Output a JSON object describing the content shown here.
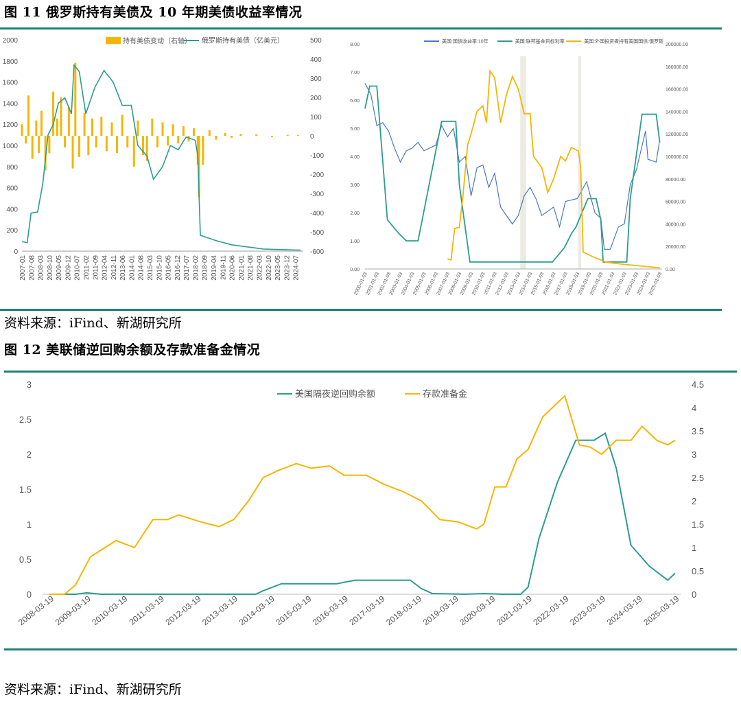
{
  "figure11": {
    "title": "图  11  俄罗斯持有美债及 10 年期美债收益率情况",
    "source": "资料来源：iFind、新湖研究所"
  },
  "figure12": {
    "title": "图  12  美联储逆回购余额及存款准备金情况",
    "source": "资料来源：iFind、新湖研究所"
  },
  "colors": {
    "teal": "#2a9d8f",
    "gold": "#f7b500",
    "rule": "#1e7f78",
    "shade": "#ecebe3",
    "blue": "#4a78c0"
  },
  "chart_data": [
    {
      "type": "bar",
      "x_ticks": [
        "2007-01",
        "2007-08",
        "2008-03",
        "2008-10",
        "2009-05",
        "2009-12",
        "2010-07",
        "2011-02",
        "2011-09",
        "2012-04",
        "2012-11",
        "2013-06",
        "2014-01",
        "2014-08",
        "2015-03",
        "2015-10",
        "2016-05",
        "2016-12",
        "2017-07",
        "2018-02",
        "2018-09",
        "2019-04",
        "2019-11",
        "2020-06",
        "2021-01",
        "2021-08",
        "2022-03",
        "2022-10",
        "2023-05",
        "2023-12",
        "2024-07"
      ],
      "y_left_ticks": [
        "0",
        "200",
        "400",
        "600",
        "800",
        "1000",
        "1200",
        "1400",
        "1600",
        "1800",
        "2000"
      ],
      "y_right_ticks": [
        "500",
        "400",
        "300",
        "200",
        "100",
        "0",
        "-100",
        "-200",
        "-300",
        "-400",
        "-500",
        "-600"
      ],
      "ylim_left": [
        0,
        2000
      ],
      "ylim_right": [
        -600,
        500
      ],
      "series": [
        {
          "name": "持有美债变动（右轴）",
          "kind": "bar",
          "axis": "right",
          "x": [
            "2007-01",
            "2007-04",
            "2007-06",
            "2007-09",
            "2007-12",
            "2008-02",
            "2008-04",
            "2008-07",
            "2008-10",
            "2009-01",
            "2009-04",
            "2009-07",
            "2009-10",
            "2010-01",
            "2010-04",
            "2010-06",
            "2010-09",
            "2011-01",
            "2011-04",
            "2011-07",
            "2011-10",
            "2012-02",
            "2012-06",
            "2012-10",
            "2013-02",
            "2013-06",
            "2013-10",
            "2014-03",
            "2014-06",
            "2014-10",
            "2015-01",
            "2015-05",
            "2015-09",
            "2016-01",
            "2016-05",
            "2016-09",
            "2017-01",
            "2017-05",
            "2017-09",
            "2018-01",
            "2018-04",
            "2018-05",
            "2018-08",
            "2019-01",
            "2019-06",
            "2020-01",
            "2020-06",
            "2021-01",
            "2022-01",
            "2023-01",
            "2024-01",
            "2024-09"
          ],
          "values": [
            60,
            -40,
            210,
            -120,
            80,
            -90,
            130,
            -180,
            -90,
            230,
            90,
            200,
            -60,
            150,
            -170,
            380,
            -110,
            120,
            -100,
            90,
            -60,
            100,
            -80,
            70,
            -90,
            110,
            -60,
            -160,
            80,
            -100,
            -130,
            90,
            -60,
            70,
            -50,
            60,
            -40,
            50,
            -30,
            40,
            -150,
            -320,
            -150,
            30,
            -20,
            15,
            -10,
            10,
            8,
            -6,
            5,
            3
          ]
        },
        {
          "name": "俄罗斯持有美债（亿美元）",
          "kind": "line",
          "axis": "left",
          "x": [
            "2007-01",
            "2007-05",
            "2007-08",
            "2008-01",
            "2008-05",
            "2008-09",
            "2009-01",
            "2009-05",
            "2009-10",
            "2010-03",
            "2010-05",
            "2010-09",
            "2011-02",
            "2011-09",
            "2012-04",
            "2012-11",
            "2013-06",
            "2014-01",
            "2014-06",
            "2015-01",
            "2015-06",
            "2016-01",
            "2016-07",
            "2017-01",
            "2017-07",
            "2018-02",
            "2018-04",
            "2018-06",
            "2019-06",
            "2020-06",
            "2021-06",
            "2022-06",
            "2023-06",
            "2024-11"
          ],
          "values": [
            90,
            80,
            360,
            370,
            640,
            1100,
            1200,
            1400,
            1450,
            1300,
            1760,
            1700,
            1300,
            1550,
            1710,
            1600,
            1380,
            1380,
            1000,
            900,
            680,
            800,
            1000,
            960,
            1080,
            1050,
            900,
            150,
            100,
            60,
            40,
            20,
            15,
            10
          ]
        }
      ],
      "legend": "top-center"
    },
    {
      "type": "line",
      "x_ticks": [
        "2000-01-03",
        "2001-01-03",
        "2002-01-03",
        "2003-01-03",
        "2004-01-03",
        "2005-01-03",
        "2006-01-03",
        "2007-01-03",
        "2008-01-03",
        "2009-01-03",
        "2010-01-03",
        "2011-01-03",
        "2012-01-03",
        "2013-01-03",
        "2014-01-03",
        "2015-01-03",
        "2016-01-03",
        "2017-01-03",
        "2018-01-03",
        "2019-01-03",
        "2020-01-03",
        "2021-01-03",
        "2022-01-03",
        "2023-01-03",
        "2024-01-03",
        "2025-01-03"
      ],
      "y_left_ticks": [
        "0.00",
        "1.00",
        "2.00",
        "3.00",
        "4.00",
        "5.00",
        "6.00",
        "7.00",
        "8.00"
      ],
      "y_right_ticks": [
        "0.00",
        "20000.00",
        "40000.00",
        "60000.00",
        "80000.00",
        "100000.00",
        "120000.00",
        "140000.00",
        "160000.00",
        "180000.00",
        "200000.00"
      ],
      "ylim_left": [
        0,
        8
      ],
      "ylim_right": [
        0,
        200000
      ],
      "shaded_ranges": [
        [
          "2013-03",
          "2013-09"
        ],
        [
          "2018-02",
          "2018-05"
        ]
      ],
      "series": [
        {
          "name": "美国:国债收益率:10年",
          "axis": "left",
          "x": [
            2000.0,
            2000.5,
            2001.0,
            2001.5,
            2002.0,
            2002.5,
            2003.0,
            2003.5,
            2004.0,
            2004.5,
            2005.0,
            2006.0,
            2006.5,
            2007.0,
            2007.5,
            2008.0,
            2008.5,
            2009.0,
            2009.5,
            2010.0,
            2010.5,
            2011.0,
            2011.5,
            2012.0,
            2012.5,
            2013.0,
            2013.5,
            2014.0,
            2014.5,
            2015.0,
            2016.0,
            2016.5,
            2017.0,
            2018.0,
            2018.8,
            2019.5,
            2020.0,
            2020.3,
            2020.8,
            2021.5,
            2022.0,
            2022.5,
            2023.0,
            2023.8,
            2024.0,
            2024.7,
            2025.0
          ],
          "values": [
            6.6,
            6.2,
            5.1,
            5.2,
            4.9,
            4.3,
            3.8,
            4.2,
            4.3,
            4.5,
            4.2,
            4.4,
            5.1,
            4.7,
            5.0,
            3.8,
            4.0,
            2.6,
            3.6,
            3.7,
            2.9,
            3.4,
            2.2,
            1.9,
            1.6,
            1.9,
            2.6,
            2.9,
            2.5,
            1.9,
            2.2,
            1.5,
            2.4,
            2.5,
            3.1,
            2.0,
            1.8,
            0.7,
            0.7,
            1.5,
            1.6,
            3.0,
            3.5,
            4.9,
            3.9,
            3.8,
            4.6
          ]
        },
        {
          "name": "美国:联邦基金目标利率",
          "axis": "left",
          "x": [
            2000.0,
            2000.4,
            2001.0,
            2001.9,
            2002.9,
            2003.5,
            2004.5,
            2006.5,
            2007.7,
            2008.0,
            2008.9,
            2015.9,
            2016.9,
            2017.5,
            2017.9,
            2018.9,
            2019.6,
            2020.0,
            2020.2,
            2022.2,
            2022.5,
            2023.5,
            2024.7,
            2025.0
          ],
          "values": [
            5.7,
            6.5,
            6.5,
            1.75,
            1.25,
            1.0,
            1.0,
            5.25,
            5.25,
            3.0,
            0.25,
            0.25,
            0.75,
            1.25,
            1.5,
            2.5,
            2.5,
            1.75,
            0.25,
            0.25,
            2.5,
            5.5,
            5.5,
            4.5
          ]
        },
        {
          "name": "美国:外国投资者持有美国国债:俄罗斯",
          "axis": "right",
          "x": [
            2007.0,
            2007.3,
            2007.6,
            2008.0,
            2008.3,
            2008.7,
            2009.0,
            2009.5,
            2010.0,
            2010.3,
            2010.6,
            2011.0,
            2011.5,
            2012.0,
            2012.5,
            2013.0,
            2013.5,
            2014.0,
            2014.3,
            2015.0,
            2015.5,
            2016.0,
            2016.6,
            2017.0,
            2017.5,
            2018.1,
            2018.3,
            2018.5,
            2019.5,
            2020.5,
            2022.0,
            2024.5,
            2025.0
          ],
          "values": [
            9000,
            8000,
            36000,
            37000,
            64000,
            110000,
            120000,
            140000,
            145000,
            130000,
            176000,
            170000,
            130000,
            155000,
            171000,
            160000,
            138000,
            138000,
            100000,
            90000,
            68000,
            80000,
            100000,
            96000,
            108000,
            105000,
            90000,
            15000,
            10000,
            6000,
            4000,
            1500,
            1000
          ]
        }
      ],
      "legend": "top-center"
    },
    {
      "type": "line",
      "x_ticks": [
        "2008-03-19",
        "2009-03-19",
        "2010-03-19",
        "2011-03-19",
        "2012-03-19",
        "2013-03-19",
        "2014-03-19",
        "2015-03-19",
        "2016-03-19",
        "2017-03-19",
        "2018-03-19",
        "2019-03-19",
        "2020-03-19",
        "2021-03-19",
        "2022-03-19",
        "2023-03-19",
        "2024-03-19",
        "2025-03-19"
      ],
      "y_left_ticks": [
        "0",
        "0.5",
        "1",
        "1.5",
        "2",
        "2.5",
        "3"
      ],
      "y_right_ticks": [
        "0",
        "0.5",
        "1",
        "1.5",
        "2",
        "2.5",
        "3",
        "3.5",
        "4",
        "4.5"
      ],
      "ylim_left": [
        0,
        3
      ],
      "ylim_right": [
        0,
        4.5
      ],
      "series": [
        {
          "name": "美国隔夜逆回购余额",
          "axis": "left",
          "x": [
            2008.2,
            2008.9,
            2009.2,
            2009.6,
            2013.8,
            2014.0,
            2014.5,
            2015.0,
            2016.0,
            2016.5,
            2017.0,
            2017.5,
            2018.0,
            2018.3,
            2018.6,
            2019.5,
            2020.0,
            2020.5,
            2021.0,
            2021.2,
            2021.5,
            2022.0,
            2022.5,
            2023.0,
            2023.3,
            2023.6,
            2024.0,
            2024.5,
            2025.0,
            2025.2
          ],
          "values": [
            0,
            0,
            0.02,
            0,
            0,
            0.05,
            0.15,
            0.15,
            0.15,
            0.2,
            0.2,
            0.2,
            0.2,
            0.08,
            0.01,
            0,
            0.01,
            0,
            0,
            0.1,
            0.8,
            1.6,
            2.2,
            2.2,
            2.3,
            1.8,
            0.7,
            0.4,
            0.2,
            0.3
          ]
        },
        {
          "name": "存款准备金",
          "axis": "right",
          "x": [
            2008.2,
            2008.6,
            2008.9,
            2009.3,
            2009.7,
            2010.0,
            2010.5,
            2011.0,
            2011.4,
            2011.7,
            2012.3,
            2012.8,
            2013.2,
            2013.6,
            2014.0,
            2014.4,
            2014.9,
            2015.3,
            2015.8,
            2016.2,
            2016.8,
            2017.3,
            2017.8,
            2018.3,
            2018.8,
            2019.3,
            2019.8,
            2020.0,
            2020.3,
            2020.6,
            2020.9,
            2021.2,
            2021.6,
            2022.0,
            2022.2,
            2022.6,
            2022.9,
            2023.2,
            2023.6,
            2024.0,
            2024.3,
            2024.7,
            2025.0,
            2025.2
          ],
          "values": [
            0,
            0,
            0.2,
            0.8,
            1.0,
            1.15,
            1.0,
            1.6,
            1.6,
            1.7,
            1.55,
            1.45,
            1.6,
            2.0,
            2.5,
            2.65,
            2.8,
            2.7,
            2.75,
            2.55,
            2.55,
            2.35,
            2.2,
            2.0,
            1.6,
            1.55,
            1.4,
            1.5,
            2.3,
            2.3,
            2.9,
            3.1,
            3.8,
            4.1,
            4.25,
            3.2,
            3.15,
            3.0,
            3.3,
            3.3,
            3.6,
            3.3,
            3.2,
            3.3
          ]
        }
      ],
      "legend": "top-center"
    }
  ]
}
